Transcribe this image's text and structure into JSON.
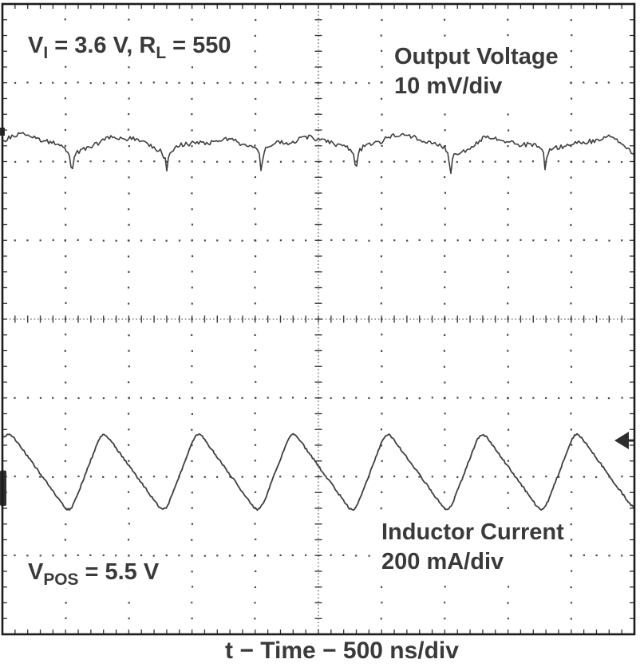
{
  "chart_data": {
    "type": "line",
    "title": "",
    "x_axis": {
      "label": "t − Time − 500 ns/div",
      "divisions": 10,
      "per_div": "500 ns"
    },
    "y_axis": {
      "divisions": 8
    },
    "grid": {
      "style": "oscilloscope dotted graticule, ticked center crosshair",
      "on": true
    },
    "annotations": {
      "vi_rl": {
        "v": "V",
        "v_sub": "I",
        "mid": " = 3.6 V, R",
        "r_sub": "L",
        "tail": " = 550"
      },
      "vpos": {
        "v": "V",
        "sub": "POS",
        "tail": " = 5.5 V"
      }
    },
    "series": [
      {
        "name": "Output Voltage",
        "scale_label": "10 mV/div",
        "per_div": "10 mV",
        "period_div": 1.497,
        "dip_x_div": 1.1,
        "keys_div": [
          [
            0,
            2.16
          ],
          [
            0.025,
            1.92
          ],
          [
            0.07,
            1.86
          ],
          [
            0.18,
            1.8
          ],
          [
            0.32,
            1.74
          ],
          [
            0.48,
            1.7
          ],
          [
            0.62,
            1.69
          ],
          [
            0.76,
            1.74
          ],
          [
            0.88,
            1.79
          ],
          [
            0.95,
            1.84
          ],
          [
            0.985,
            1.95
          ],
          [
            1,
            2.16
          ]
        ],
        "slow_noise_div": 0.065,
        "fast_noise_div": 0.03,
        "left_marker_y_div": 1.62
      },
      {
        "name": "Inductor Current",
        "scale_label": "200 mA/div",
        "per_div": "200 mA",
        "period_div": 1.497,
        "first_peak_x_div": 0.088,
        "peak_div": 5.4,
        "trough_div": 6.48,
        "rise_div": 0.517,
        "noise_div": 0.013,
        "right_marker_y_div": 5.54,
        "left_marker_y_div": 5.92,
        "left_marker_h_div": 0.45
      }
    ],
    "colors": {
      "trace": "#3f3f3f",
      "grid_dot": "#4a4a4a",
      "frame": "#1c1c1c",
      "text": "#3a3a3a",
      "background": "#ffffff"
    }
  }
}
